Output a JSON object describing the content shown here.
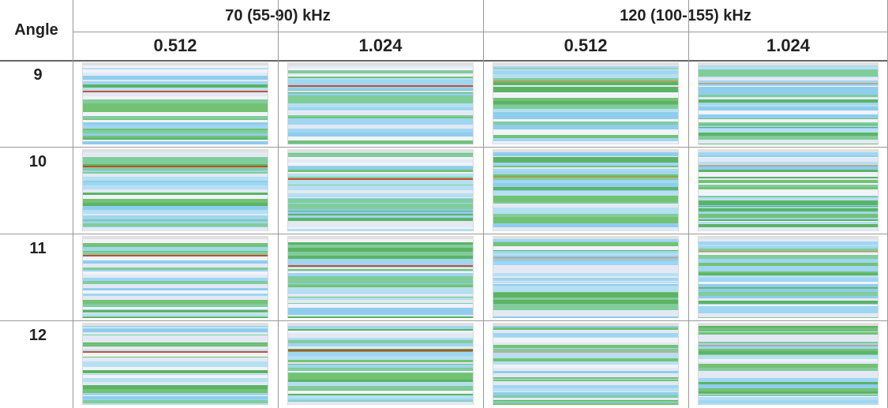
{
  "table": {
    "header": {
      "angle": "Angle",
      "groups": [
        "70 (55-90) kHz",
        "120 (100-155) kHz"
      ],
      "subheaders": [
        "0.512",
        "1.024",
        "0.512",
        "1.024"
      ]
    },
    "rows": [
      "9",
      "10",
      "11",
      "12"
    ]
  }
}
